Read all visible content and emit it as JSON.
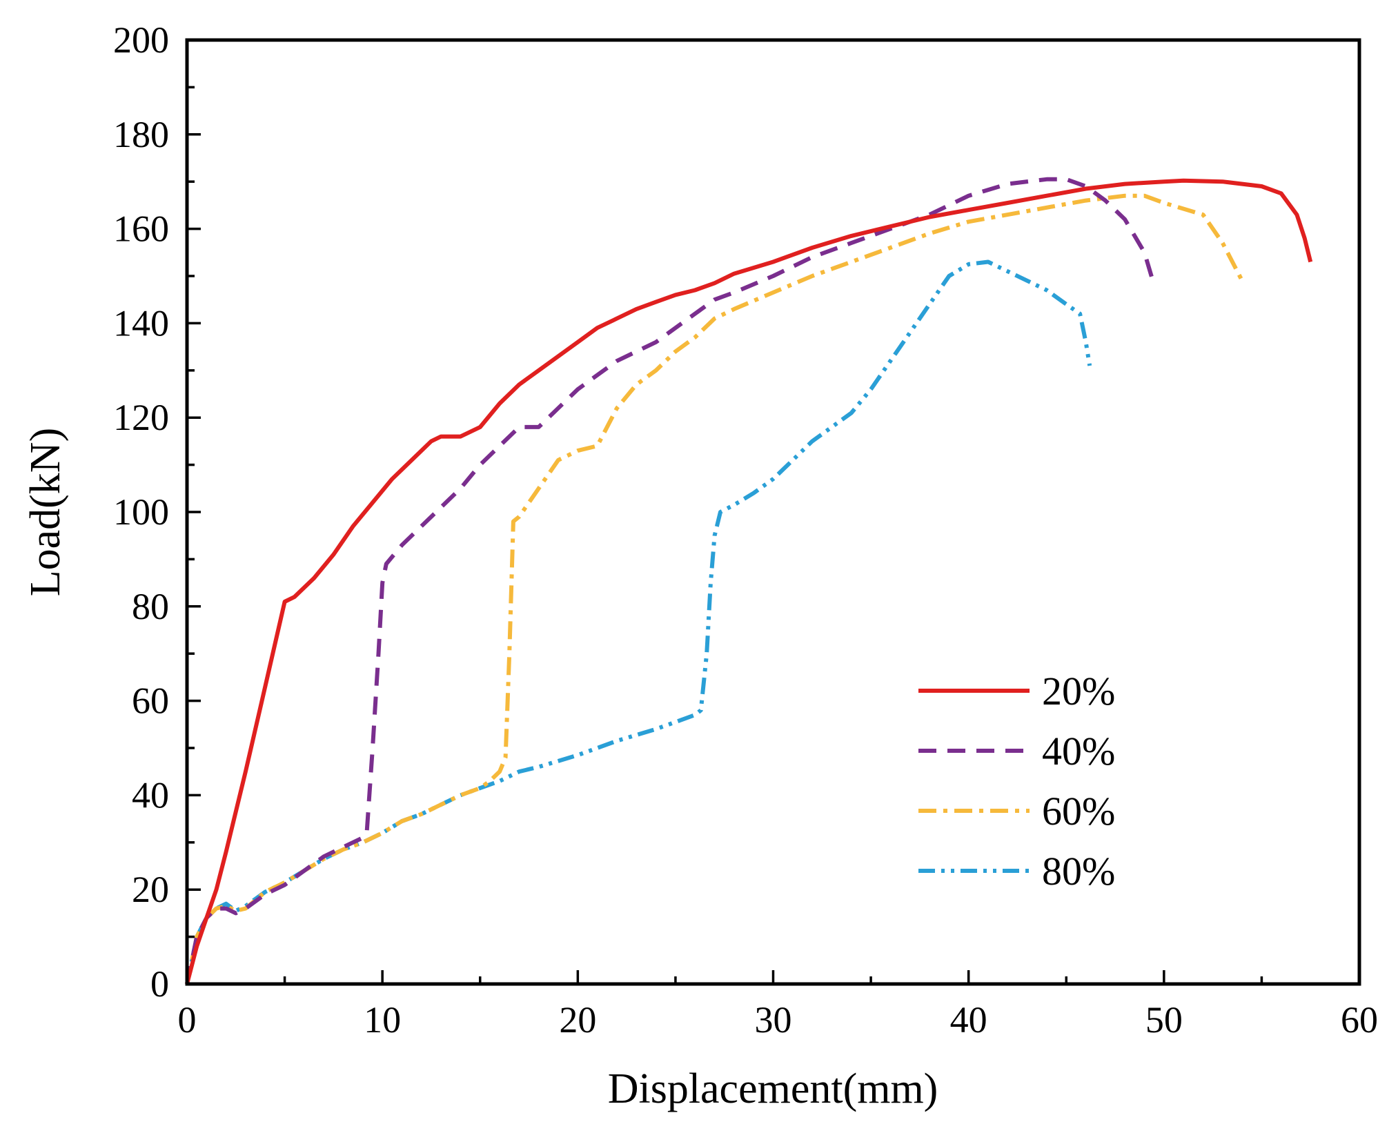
{
  "chart_data": {
    "type": "line",
    "title": "",
    "xlabel": "Displacement(mm)",
    "ylabel": "Load(kN)",
    "xlim": [
      0,
      60
    ],
    "ylim": [
      0,
      200
    ],
    "xticks": [
      0,
      10,
      20,
      30,
      40,
      50,
      60
    ],
    "yticks": [
      0,
      20,
      40,
      60,
      80,
      100,
      120,
      140,
      160,
      180,
      200
    ],
    "grid": false,
    "legend_position": "bottom-right",
    "series": [
      {
        "name": "20%",
        "color": "#e0201f",
        "dash": "solid",
        "points": [
          [
            0,
            0
          ],
          [
            0.5,
            8
          ],
          [
            1,
            14
          ],
          [
            1.5,
            20
          ],
          [
            2,
            28
          ],
          [
            3,
            45
          ],
          [
            4,
            63
          ],
          [
            5,
            81
          ],
          [
            5.5,
            82
          ],
          [
            6.5,
            86
          ],
          [
            7.5,
            91
          ],
          [
            8.5,
            97
          ],
          [
            9.5,
            102
          ],
          [
            10.5,
            107
          ],
          [
            11.5,
            111
          ],
          [
            12.5,
            115
          ],
          [
            13,
            116
          ],
          [
            14,
            116
          ],
          [
            15,
            118
          ],
          [
            16,
            123
          ],
          [
            17,
            127
          ],
          [
            18,
            130
          ],
          [
            19,
            133
          ],
          [
            20,
            136
          ],
          [
            21,
            139
          ],
          [
            22,
            141
          ],
          [
            23,
            143
          ],
          [
            24,
            144.5
          ],
          [
            25,
            146
          ],
          [
            26,
            147
          ],
          [
            27,
            148.5
          ],
          [
            28,
            150.5
          ],
          [
            30,
            153
          ],
          [
            32,
            156
          ],
          [
            34,
            158.5
          ],
          [
            36,
            160.5
          ],
          [
            38,
            162.5
          ],
          [
            40,
            164
          ],
          [
            42,
            165.5
          ],
          [
            44,
            167
          ],
          [
            46,
            168.5
          ],
          [
            48,
            169.5
          ],
          [
            50,
            170
          ],
          [
            51,
            170.2
          ],
          [
            53,
            170
          ],
          [
            55,
            169
          ],
          [
            56,
            167.5
          ],
          [
            56.8,
            163
          ],
          [
            57.2,
            158
          ],
          [
            57.5,
            153
          ]
        ]
      },
      {
        "name": "40%",
        "color": "#7a2e8e",
        "dash": "dash",
        "points": [
          [
            0,
            0
          ],
          [
            0.5,
            10
          ],
          [
            1,
            14
          ],
          [
            1.5,
            16
          ],
          [
            2,
            16
          ],
          [
            2.5,
            15
          ],
          [
            3,
            16
          ],
          [
            4,
            19
          ],
          [
            5,
            21
          ],
          [
            6,
            24
          ],
          [
            7,
            27
          ],
          [
            8,
            29
          ],
          [
            9,
            31
          ],
          [
            9.2,
            32
          ],
          [
            9.5,
            50
          ],
          [
            9.8,
            70
          ],
          [
            10,
            85
          ],
          [
            10.2,
            89
          ],
          [
            11,
            93
          ],
          [
            12,
            97
          ],
          [
            13,
            101
          ],
          [
            14,
            105
          ],
          [
            15,
            110
          ],
          [
            16,
            114
          ],
          [
            17,
            118
          ],
          [
            18,
            118
          ],
          [
            19,
            122
          ],
          [
            20,
            126
          ],
          [
            21,
            129
          ],
          [
            22,
            132
          ],
          [
            23,
            134
          ],
          [
            24,
            136
          ],
          [
            25,
            139
          ],
          [
            26,
            142
          ],
          [
            27,
            145
          ],
          [
            28,
            146.5
          ],
          [
            30,
            150
          ],
          [
            32,
            154
          ],
          [
            34,
            157
          ],
          [
            36,
            160
          ],
          [
            38,
            163
          ],
          [
            40,
            167
          ],
          [
            42,
            169.5
          ],
          [
            44,
            170.5
          ],
          [
            45,
            170.5
          ],
          [
            46,
            169
          ],
          [
            47,
            166
          ],
          [
            48,
            162
          ],
          [
            49,
            155
          ],
          [
            49.5,
            148
          ]
        ]
      },
      {
        "name": "60%",
        "color": "#f6b93b",
        "dash": "dashdot",
        "points": [
          [
            0,
            0
          ],
          [
            0.5,
            10
          ],
          [
            1,
            14
          ],
          [
            1.5,
            16
          ],
          [
            2,
            16.5
          ],
          [
            2.5,
            15.5
          ],
          [
            3,
            16
          ],
          [
            4,
            19.5
          ],
          [
            5,
            21.5
          ],
          [
            6,
            24
          ],
          [
            7,
            26.5
          ],
          [
            8,
            28.5
          ],
          [
            9,
            30
          ],
          [
            10,
            32
          ],
          [
            11,
            34.5
          ],
          [
            12,
            36
          ],
          [
            13,
            38
          ],
          [
            14,
            40
          ],
          [
            15,
            41.5
          ],
          [
            15.5,
            43
          ],
          [
            16,
            45
          ],
          [
            16.3,
            48
          ],
          [
            16.5,
            70
          ],
          [
            16.7,
            98
          ],
          [
            17,
            99
          ],
          [
            18,
            105
          ],
          [
            19,
            111
          ],
          [
            20,
            113
          ],
          [
            21,
            114
          ],
          [
            22,
            122
          ],
          [
            23,
            127
          ],
          [
            24,
            130
          ],
          [
            25,
            134
          ],
          [
            26,
            137
          ],
          [
            27,
            141
          ],
          [
            28,
            143
          ],
          [
            30,
            146.5
          ],
          [
            32,
            150
          ],
          [
            34,
            153
          ],
          [
            36,
            156
          ],
          [
            38,
            159
          ],
          [
            40,
            161.5
          ],
          [
            42,
            163
          ],
          [
            44,
            164.5
          ],
          [
            46,
            166
          ],
          [
            48,
            167
          ],
          [
            49,
            167
          ],
          [
            50,
            165.5
          ],
          [
            52,
            163
          ],
          [
            53,
            157
          ],
          [
            54,
            149
          ]
        ]
      },
      {
        "name": "80%",
        "color": "#2a9fd6",
        "dash": "dashdotdot",
        "points": [
          [
            0,
            0
          ],
          [
            0.5,
            10
          ],
          [
            1,
            14
          ],
          [
            1.5,
            16
          ],
          [
            2,
            17
          ],
          [
            2.5,
            15.5
          ],
          [
            3,
            16.5
          ],
          [
            4,
            19.5
          ],
          [
            5,
            21.5
          ],
          [
            6,
            24
          ],
          [
            7,
            26.5
          ],
          [
            8,
            28.5
          ],
          [
            9,
            30
          ],
          [
            10,
            32
          ],
          [
            11,
            34.5
          ],
          [
            12,
            36
          ],
          [
            13,
            38
          ],
          [
            14,
            40
          ],
          [
            15,
            41.5
          ],
          [
            16,
            43
          ],
          [
            17,
            45
          ],
          [
            18,
            46
          ],
          [
            20,
            48.5
          ],
          [
            22,
            51.5
          ],
          [
            24,
            54
          ],
          [
            26,
            57
          ],
          [
            26.3,
            58
          ],
          [
            26.6,
            70
          ],
          [
            26.8,
            85
          ],
          [
            27,
            95
          ],
          [
            27.3,
            100
          ],
          [
            28,
            101.5
          ],
          [
            29,
            104
          ],
          [
            30,
            107
          ],
          [
            31,
            111
          ],
          [
            32,
            115
          ],
          [
            33,
            118
          ],
          [
            34,
            121
          ],
          [
            35,
            126
          ],
          [
            36,
            132
          ],
          [
            37,
            138
          ],
          [
            38,
            144
          ],
          [
            39,
            150
          ],
          [
            40,
            152.5
          ],
          [
            41,
            153
          ],
          [
            42,
            151
          ],
          [
            43,
            149
          ],
          [
            44,
            147
          ],
          [
            45,
            144
          ],
          [
            45.7,
            142
          ],
          [
            46,
            136
          ],
          [
            46.2,
            131
          ]
        ]
      }
    ]
  }
}
